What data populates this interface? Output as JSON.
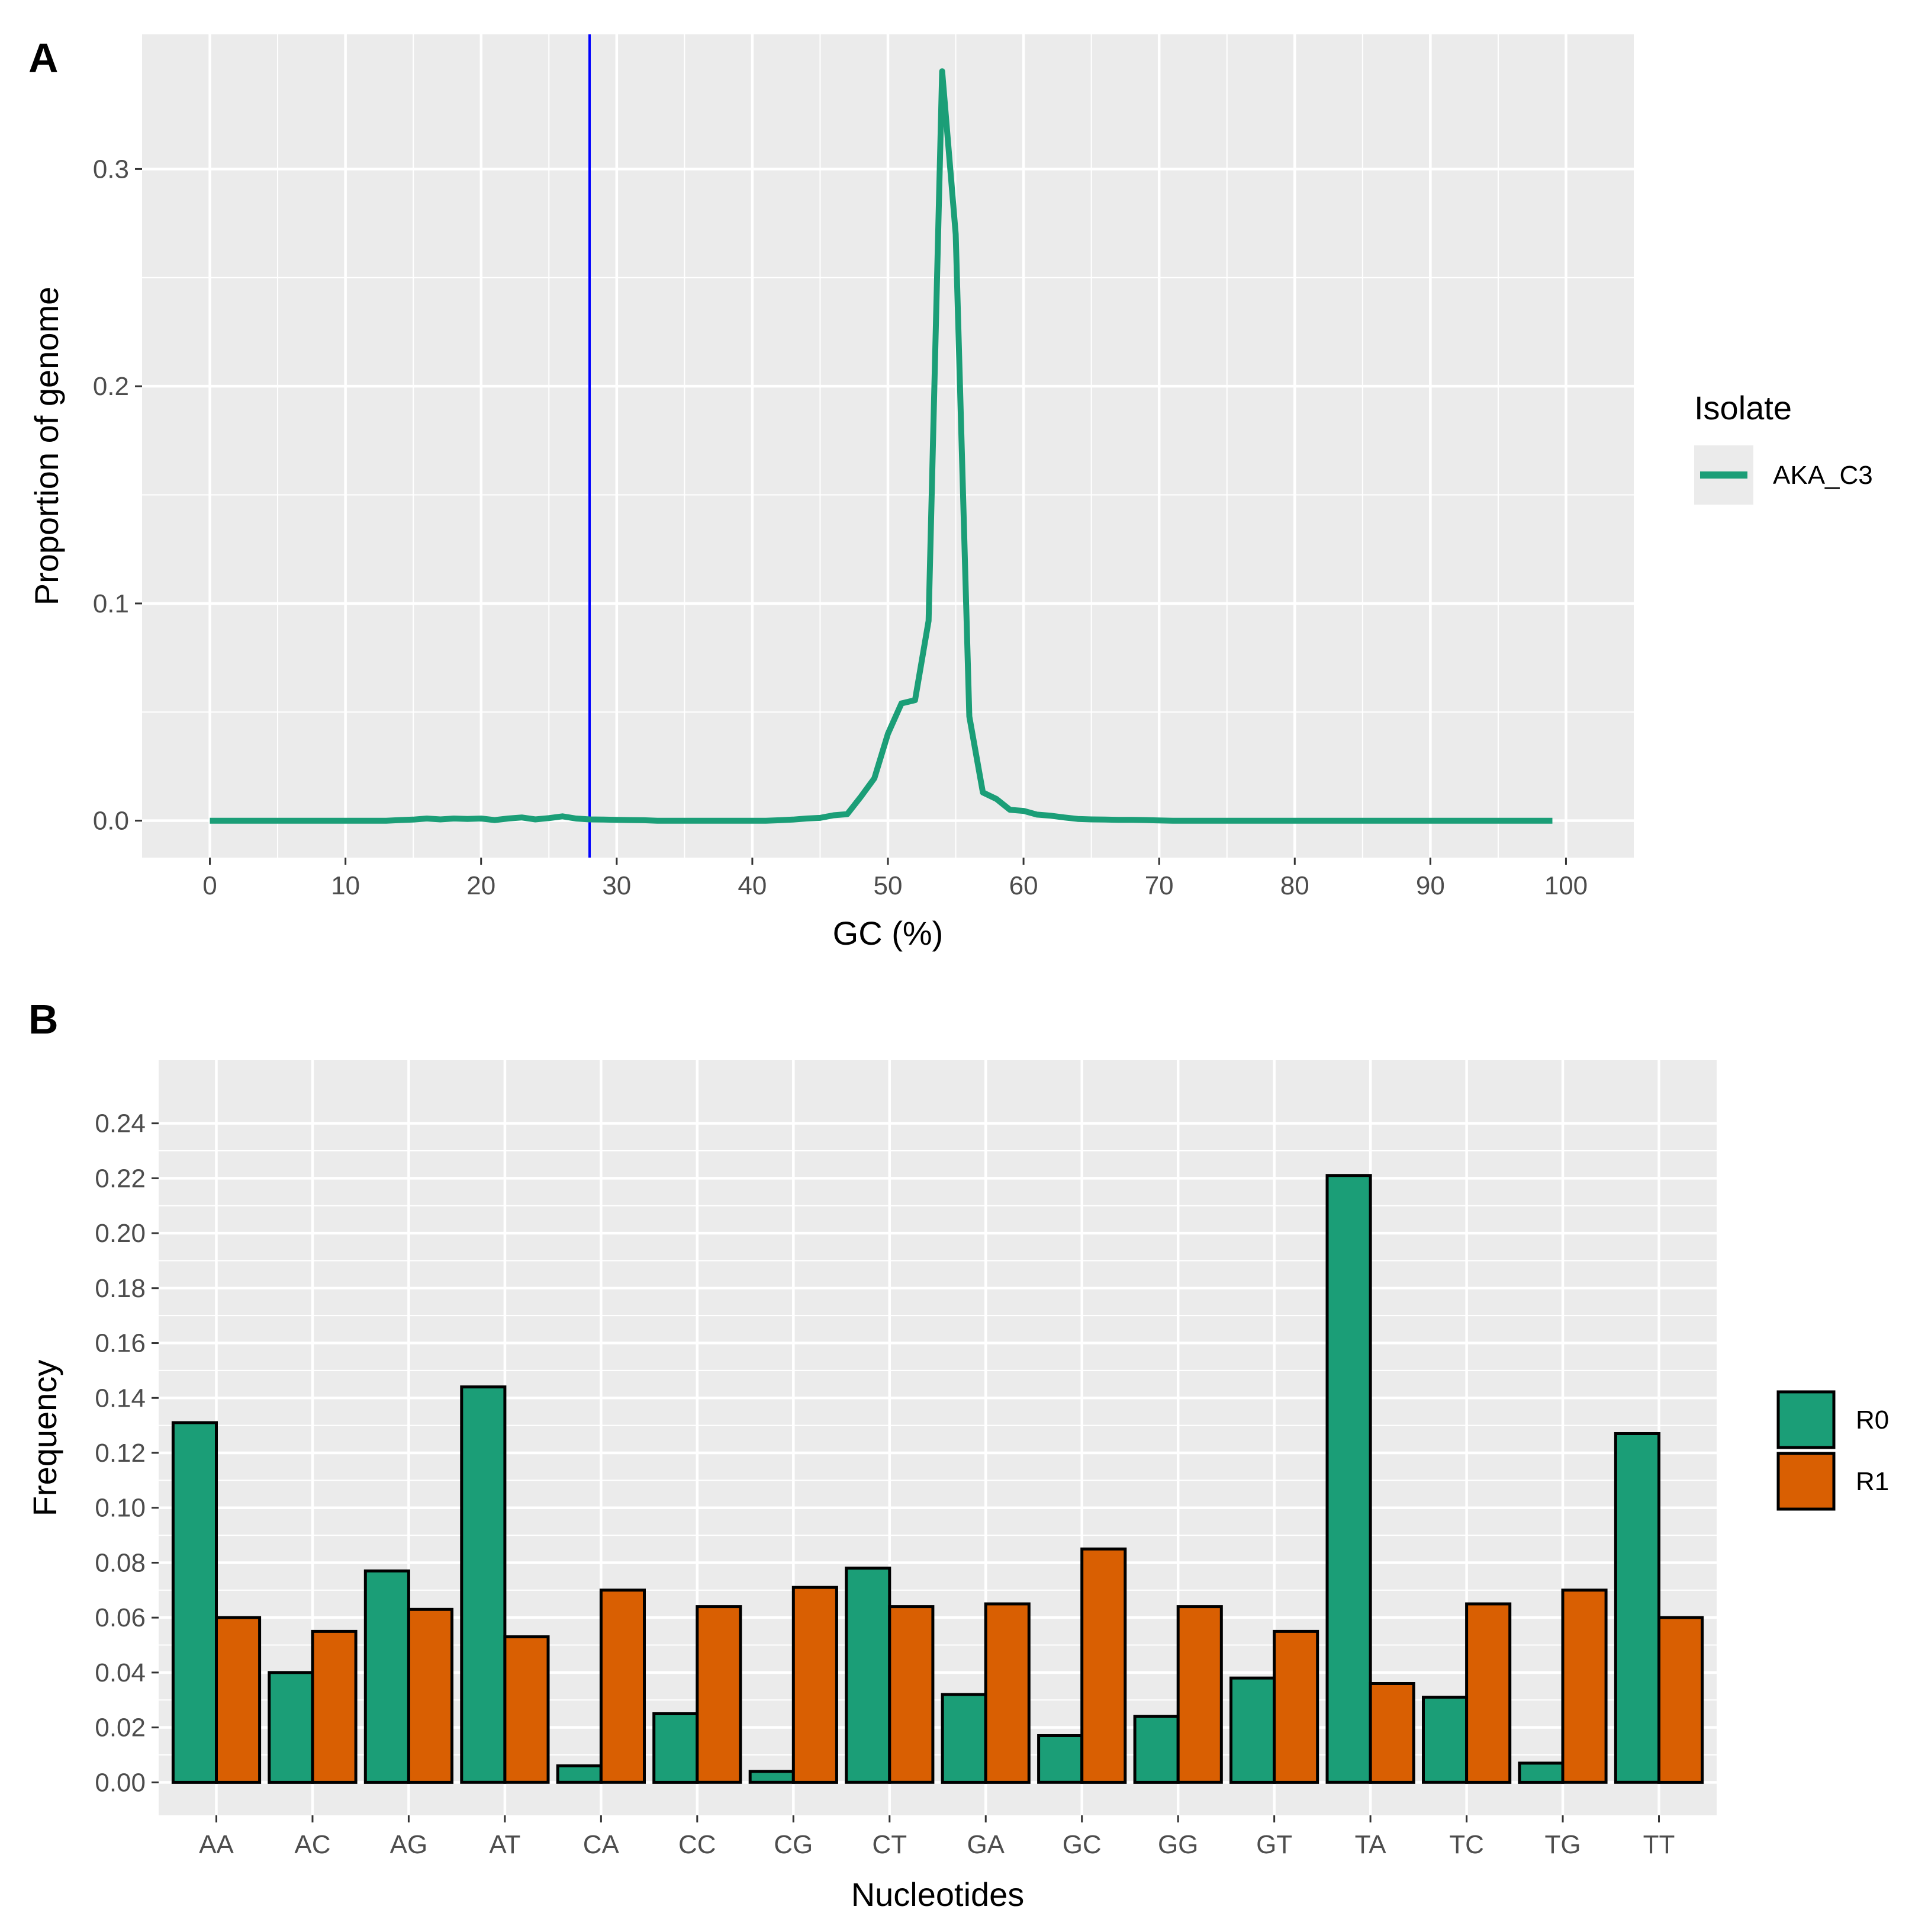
{
  "colors": {
    "panel_bg": "#ebebeb",
    "grid": "#ffffff",
    "green": "#1b9e77",
    "orange": "#d95f02",
    "vline": "#0000ff",
    "tick_text": "#4d4d4d",
    "bar_outline": "#000000"
  },
  "chart_data": [
    {
      "panel_label": "A",
      "type": "line",
      "xlabel": "GC (%)",
      "ylabel": "Proportion of genome",
      "xlim": [
        -5,
        105
      ],
      "ylim": [
        -0.017,
        0.362
      ],
      "xticks": [
        0,
        10,
        20,
        30,
        40,
        50,
        60,
        70,
        80,
        90,
        100
      ],
      "yticks": [
        0.0,
        0.1,
        0.2,
        0.3
      ],
      "ytick_labels": [
        "0.0",
        "0.1",
        "0.2",
        "0.3"
      ],
      "vline_x": 28,
      "legend": {
        "title": "Isolate",
        "entries": [
          {
            "label": "AKA_C3",
            "color": "#1b9e77"
          }
        ]
      },
      "series": [
        {
          "name": "AKA_C3",
          "color": "#1b9e77",
          "points": [
            [
              0,
              0
            ],
            [
              1,
              0
            ],
            [
              2,
              0
            ],
            [
              3,
              0
            ],
            [
              4,
              0
            ],
            [
              5,
              0
            ],
            [
              6,
              0
            ],
            [
              7,
              0
            ],
            [
              8,
              0
            ],
            [
              9,
              0
            ],
            [
              10,
              0
            ],
            [
              11,
              0
            ],
            [
              12,
              0
            ],
            [
              13,
              0
            ],
            [
              14,
              0.0003
            ],
            [
              15,
              0.0005
            ],
            [
              16,
              0.001
            ],
            [
              17,
              0.0006
            ],
            [
              18,
              0.001
            ],
            [
              19,
              0.0008
            ],
            [
              20,
              0.001
            ],
            [
              21,
              0.0003
            ],
            [
              22,
              0.001
            ],
            [
              23,
              0.0015
            ],
            [
              24,
              0.0006
            ],
            [
              25,
              0.0012
            ],
            [
              26,
              0.002
            ],
            [
              27,
              0.001
            ],
            [
              28,
              0.0006
            ],
            [
              29,
              0.0005
            ],
            [
              30,
              0.0004
            ],
            [
              31,
              0.0003
            ],
            [
              32,
              0.0002
            ],
            [
              33,
              0
            ],
            [
              34,
              0
            ],
            [
              35,
              0
            ],
            [
              36,
              0
            ],
            [
              37,
              0
            ],
            [
              38,
              0
            ],
            [
              39,
              0
            ],
            [
              40,
              0
            ],
            [
              41,
              0
            ],
            [
              42,
              0.0002
            ],
            [
              43,
              0.0005
            ],
            [
              44,
              0.001
            ],
            [
              45,
              0.0013
            ],
            [
              46,
              0.0025
            ],
            [
              47,
              0.003
            ],
            [
              48,
              0.011
            ],
            [
              49,
              0.0195
            ],
            [
              50,
              0.04
            ],
            [
              51,
              0.054
            ],
            [
              52,
              0.0555
            ],
            [
              53,
              0.092
            ],
            [
              54,
              0.345
            ],
            [
              55,
              0.27
            ],
            [
              56,
              0.048
            ],
            [
              57,
              0.013
            ],
            [
              58,
              0.01
            ],
            [
              59,
              0.005
            ],
            [
              60,
              0.0045
            ],
            [
              61,
              0.0028
            ],
            [
              62,
              0.0023
            ],
            [
              63,
              0.0015
            ],
            [
              64,
              0.0008
            ],
            [
              65,
              0.0006
            ],
            [
              66,
              0.0005
            ],
            [
              67,
              0.0004
            ],
            [
              68,
              0.0004
            ],
            [
              69,
              0.0003
            ],
            [
              70,
              0.0001
            ],
            [
              71,
              0
            ],
            [
              72,
              0
            ],
            [
              73,
              0
            ],
            [
              74,
              0
            ],
            [
              75,
              0
            ],
            [
              76,
              0
            ],
            [
              77,
              0
            ],
            [
              78,
              0
            ],
            [
              79,
              0
            ],
            [
              80,
              0
            ],
            [
              81,
              0
            ],
            [
              82,
              0
            ],
            [
              83,
              0
            ],
            [
              84,
              0
            ],
            [
              85,
              0
            ],
            [
              86,
              0
            ],
            [
              87,
              0
            ],
            [
              88,
              0
            ],
            [
              89,
              0
            ],
            [
              90,
              0
            ],
            [
              91,
              0
            ],
            [
              92,
              0
            ],
            [
              93,
              0
            ],
            [
              94,
              0
            ],
            [
              95,
              0
            ],
            [
              96,
              0
            ],
            [
              97,
              0
            ],
            [
              98,
              0
            ],
            [
              99,
              0
            ]
          ]
        }
      ]
    },
    {
      "panel_label": "B",
      "type": "bar",
      "xlabel": "Nucleotides",
      "ylabel": "Frequency",
      "ylim": [
        -0.012,
        0.263
      ],
      "yticks": [
        0.0,
        0.02,
        0.04,
        0.06,
        0.08,
        0.1,
        0.12,
        0.14,
        0.16,
        0.18,
        0.2,
        0.22,
        0.24
      ],
      "ytick_labels": [
        "0.00",
        "0.02",
        "0.04",
        "0.06",
        "0.08",
        "0.10",
        "0.12",
        "0.14",
        "0.16",
        "0.18",
        "0.20",
        "0.22",
        "0.24"
      ],
      "categories": [
        "AA",
        "AC",
        "AG",
        "AT",
        "CA",
        "CC",
        "CG",
        "CT",
        "GA",
        "GC",
        "GG",
        "GT",
        "TA",
        "TC",
        "TG",
        "TT"
      ],
      "legend": {
        "entries": [
          {
            "label": "R0",
            "color": "#1b9e77"
          },
          {
            "label": "R1",
            "color": "#d95f02"
          }
        ]
      },
      "series": [
        {
          "name": "R0",
          "color": "#1b9e77",
          "values": [
            0.131,
            0.04,
            0.077,
            0.144,
            0.006,
            0.025,
            0.004,
            0.078,
            0.032,
            0.017,
            0.024,
            0.038,
            0.221,
            0.031,
            0.007,
            0.127
          ]
        },
        {
          "name": "R1",
          "color": "#d95f02",
          "values": [
            0.06,
            0.055,
            0.063,
            0.053,
            0.07,
            0.064,
            0.071,
            0.064,
            0.065,
            0.085,
            0.064,
            0.055,
            0.036,
            0.065,
            0.07,
            0.06
          ]
        }
      ]
    }
  ]
}
